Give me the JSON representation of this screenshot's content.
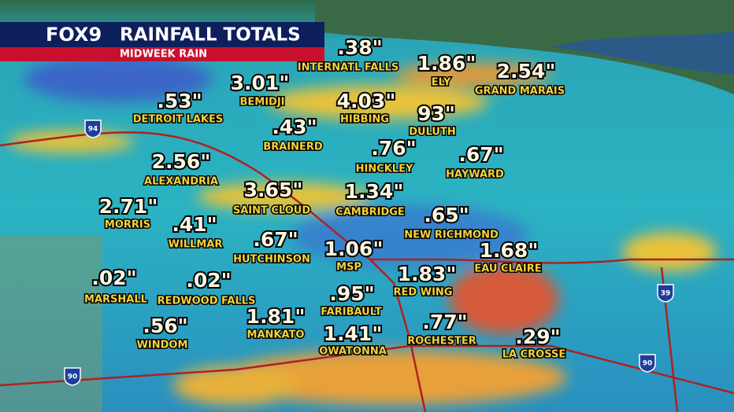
{
  "header": {
    "logo": "FOX9",
    "title": "RAINFALL TOTALS",
    "subtitle": "MIDWEEK RAIN"
  },
  "locations": [
    {
      "value": ".38\"",
      "name": "INTERNATL FALLS"
    },
    {
      "value": "1.86\"",
      "name": "ELY"
    },
    {
      "value": "2.54\"",
      "name": "GRAND MARAIS"
    },
    {
      "value": "3.01\"",
      "name": "BEMIDJI"
    },
    {
      "value": ".53\"",
      "name": "DETROIT LAKES"
    },
    {
      "value": "4.03\"",
      "name": "HIBBING"
    },
    {
      "value": "93\"",
      "name": "DULUTH"
    },
    {
      "value": ".43\"",
      "name": "BRAINERD"
    },
    {
      "value": ".76\"",
      "name": "HINCKLEY"
    },
    {
      "value": ".67\"",
      "name": "HAYWARD"
    },
    {
      "value": "2.56\"",
      "name": "ALEXANDRIA"
    },
    {
      "value": "3.65\"",
      "name": "SAINT CLOUD"
    },
    {
      "value": "1.34\"",
      "name": "CAMBRIDGE"
    },
    {
      "value": "2.71\"",
      "name": "MORRIS"
    },
    {
      "value": ".65\"",
      "name": "NEW RICHMOND"
    },
    {
      "value": ".41\"",
      "name": "WILLMAR"
    },
    {
      "value": ".67\"",
      "name": "HUTCHINSON"
    },
    {
      "value": "1.06\"",
      "name": "MSP"
    },
    {
      "value": "1.68\"",
      "name": "EAU CLAIRE"
    },
    {
      "value": "1.83\"",
      "name": "RED WING"
    },
    {
      "value": ".02\"",
      "name": "MARSHALL"
    },
    {
      "value": ".02\"",
      "name": "REDWOOD FALLS"
    },
    {
      "value": ".95\"",
      "name": "FARIBAULT"
    },
    {
      "value": "1.81\"",
      "name": "MANKATO"
    },
    {
      "value": ".56\"",
      "name": "WINDOM"
    },
    {
      "value": "1.41\"",
      "name": "OWATONNA"
    },
    {
      "value": ".77\"",
      "name": "ROCHESTER"
    },
    {
      "value": ".29\"",
      "name": "LA CROSSE"
    }
  ],
  "shields": [
    "94",
    "90",
    "90",
    "39"
  ]
}
